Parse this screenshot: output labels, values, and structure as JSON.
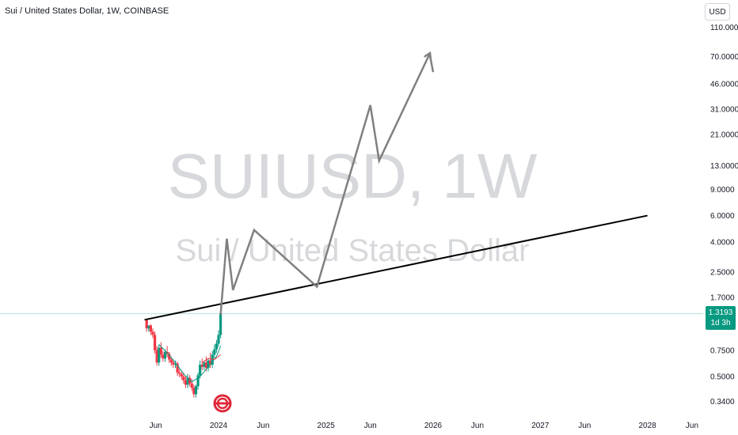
{
  "header": {
    "title": "Sui / United States Dollar, 1W, COINBASE",
    "currency": "USD"
  },
  "watermark": {
    "symbol": "SUIUSD, 1W",
    "name": "Sui / United States Dollar"
  },
  "price_badge": {
    "price": "1.3193",
    "countdown": "1d 3h"
  },
  "colors": {
    "up": "#089981",
    "down": "#f23645",
    "trendline": "#000000",
    "projection": "#808080",
    "last_price_line": "#b2dfdb"
  },
  "chart_data": {
    "type": "candlestick",
    "title": "Sui / United States Dollar, 1W, COINBASE",
    "y_scale": "log",
    "y_ticks": [
      "110.0000",
      "70.0000",
      "46.0000",
      "31.0000",
      "21.0000",
      "13.0000",
      "9.0000",
      "6.0000",
      "4.0000",
      "2.5000",
      "1.7000",
      "0.7500",
      "0.5000",
      "0.3400"
    ],
    "x_ticks": [
      "Jun",
      "2024",
      "Jun",
      "2025",
      "Jun",
      "2026",
      "Jun",
      "2027",
      "Jun",
      "2028",
      "Jun"
    ],
    "x_tick_dates": [
      "2023-06-01",
      "2024-01-01",
      "2024-06-01",
      "2025-01-01",
      "2025-06-01",
      "2026-01-01",
      "2026-06-01",
      "2027-01-01",
      "2027-06-01",
      "2028-01-01",
      "2028-06-01"
    ],
    "last_price": 1.3193,
    "candles": [
      {
        "t": "2023-05-01",
        "o": 1.2,
        "h": 1.22,
        "c": 1.05
      },
      {
        "t": "2023-05-08",
        "o": 1.05,
        "h": 1.1,
        "c": 1.1
      },
      {
        "t": "2023-05-15",
        "o": 1.1,
        "h": 1.12,
        "c": 1.0
      },
      {
        "t": "2023-05-22",
        "o": 1.0,
        "h": 1.05,
        "c": 0.95
      },
      {
        "t": "2023-05-29",
        "o": 0.95,
        "h": 1.0,
        "c": 0.75
      },
      {
        "t": "2023-06-05",
        "o": 0.75,
        "h": 0.8,
        "c": 0.62
      },
      {
        "t": "2023-06-12",
        "o": 0.62,
        "h": 0.82,
        "c": 0.78
      },
      {
        "t": "2023-06-19",
        "o": 0.78,
        "h": 0.85,
        "c": 0.7
      },
      {
        "t": "2023-06-26",
        "o": 0.7,
        "h": 0.74,
        "c": 0.66
      },
      {
        "t": "2023-07-03",
        "o": 0.66,
        "h": 0.76,
        "c": 0.73
      },
      {
        "t": "2023-07-10",
        "o": 0.73,
        "h": 0.8,
        "c": 0.71
      },
      {
        "t": "2023-07-17",
        "o": 0.71,
        "h": 0.73,
        "c": 0.65
      },
      {
        "t": "2023-07-24",
        "o": 0.65,
        "h": 0.68,
        "c": 0.62
      },
      {
        "t": "2023-07-31",
        "o": 0.62,
        "h": 0.65,
        "c": 0.6
      },
      {
        "t": "2023-08-07",
        "o": 0.6,
        "h": 0.64,
        "c": 0.61
      },
      {
        "t": "2023-08-14",
        "o": 0.61,
        "h": 0.63,
        "c": 0.53
      },
      {
        "t": "2023-08-21",
        "o": 0.53,
        "h": 0.56,
        "c": 0.52
      },
      {
        "t": "2023-08-28",
        "o": 0.52,
        "h": 0.55,
        "c": 0.5
      },
      {
        "t": "2023-09-04",
        "o": 0.5,
        "h": 0.53,
        "c": 0.47
      },
      {
        "t": "2023-09-11",
        "o": 0.47,
        "h": 0.5,
        "c": 0.44
      },
      {
        "t": "2023-09-18",
        "o": 0.44,
        "h": 0.52,
        "c": 0.49
      },
      {
        "t": "2023-09-25",
        "o": 0.49,
        "h": 0.51,
        "c": 0.45
      },
      {
        "t": "2023-10-02",
        "o": 0.45,
        "h": 0.48,
        "c": 0.42
      },
      {
        "t": "2023-10-09",
        "o": 0.42,
        "h": 0.44,
        "c": 0.38
      },
      {
        "t": "2023-10-16",
        "o": 0.38,
        "h": 0.44,
        "c": 0.43
      },
      {
        "t": "2023-10-23",
        "o": 0.43,
        "h": 0.53,
        "c": 0.51
      },
      {
        "t": "2023-10-30",
        "o": 0.51,
        "h": 0.64,
        "c": 0.6
      },
      {
        "t": "2023-11-06",
        "o": 0.6,
        "h": 0.66,
        "c": 0.58
      },
      {
        "t": "2023-11-13",
        "o": 0.58,
        "h": 0.64,
        "c": 0.62
      },
      {
        "t": "2023-11-20",
        "o": 0.62,
        "h": 0.68,
        "c": 0.57
      },
      {
        "t": "2023-11-27",
        "o": 0.57,
        "h": 0.66,
        "c": 0.64
      },
      {
        "t": "2023-12-04",
        "o": 0.64,
        "h": 0.72,
        "c": 0.6
      },
      {
        "t": "2023-12-11",
        "o": 0.6,
        "h": 0.74,
        "c": 0.7
      },
      {
        "t": "2023-12-18",
        "o": 0.7,
        "h": 0.82,
        "c": 0.76
      },
      {
        "t": "2023-12-25",
        "o": 0.76,
        "h": 0.88,
        "c": 0.83
      },
      {
        "t": "2024-01-01",
        "o": 0.83,
        "h": 1.02,
        "c": 0.95
      },
      {
        "t": "2024-01-08",
        "o": 0.95,
        "h": 1.35,
        "c": 1.3193
      }
    ],
    "moving_averages": [
      {
        "color": "#089981",
        "points": [
          [
            "2023-06-12",
            0.82
          ],
          [
            "2023-07-10",
            0.72
          ],
          [
            "2023-08-07",
            0.62
          ],
          [
            "2023-09-04",
            0.52
          ],
          [
            "2023-10-02",
            0.46
          ],
          [
            "2023-10-30",
            0.5
          ],
          [
            "2023-11-27",
            0.58
          ],
          [
            "2023-12-25",
            0.68
          ],
          [
            "2024-01-08",
            0.8
          ]
        ]
      },
      {
        "color": "#f23645",
        "points": [
          [
            "2023-11-06",
            0.62
          ],
          [
            "2023-11-27",
            0.66
          ],
          [
            "2023-12-18",
            0.65
          ],
          [
            "2024-01-08",
            0.7
          ]
        ]
      }
    ],
    "trendline": {
      "points": [
        [
          "2023-04-24",
          1.2
        ],
        [
          "2028-01-01",
          6.0
        ]
      ]
    },
    "projection": {
      "points": [
        [
          "2024-01-08",
          1.3
        ],
        [
          "2024-01-29",
          4.2
        ],
        [
          "2024-02-19",
          1.9
        ],
        [
          "2024-05-01",
          4.8
        ],
        [
          "2024-12-01",
          2.0
        ],
        [
          "2025-06-01",
          33
        ],
        [
          "2025-07-01",
          14
        ],
        [
          "2025-12-20",
          73
        ],
        [
          "2026-01-01",
          55
        ]
      ]
    }
  }
}
